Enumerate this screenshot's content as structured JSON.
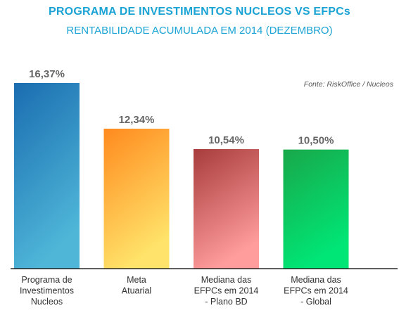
{
  "header": {
    "title": "PROGRAMA DE INVESTIMENTOS NUCLEOS VS EFPCs",
    "subtitle": "RENTABILIDADE ACUMULADA EM 2014 (DEZEMBRO)",
    "source": "Fonte: RiskOffice / Nucleos"
  },
  "chart_data": {
    "type": "bar",
    "title": "PROGRAMA DE INVESTIMENTOS NUCLEOS VS EFPCs",
    "subtitle": "RENTABILIDADE ACUMULADA EM 2014 (DEZEMBRO)",
    "categories": [
      [
        "Programa de",
        "Investimentos",
        "Nucleos"
      ],
      [
        "Meta",
        "Atuarial"
      ],
      [
        "Mediana das",
        "EFPCs em 2014",
        "- Plano BD"
      ],
      [
        "Mediana das",
        "EFPCs em 2014",
        "- Global"
      ]
    ],
    "values": [
      16.37,
      12.34,
      10.54,
      10.5
    ],
    "value_labels": [
      "16,37%",
      "12,34%",
      "10,54%",
      "10,50%"
    ],
    "colors": [
      [
        "#1a6db0",
        "#4fb6d8"
      ],
      [
        "#ff8a1e",
        "#ffe36a"
      ],
      [
        "#a83c3c",
        "#ff9c9c"
      ],
      [
        "#18a84a",
        "#00e676"
      ]
    ],
    "ylim": [
      0,
      16.37
    ],
    "grid": false,
    "legend": "none"
  }
}
